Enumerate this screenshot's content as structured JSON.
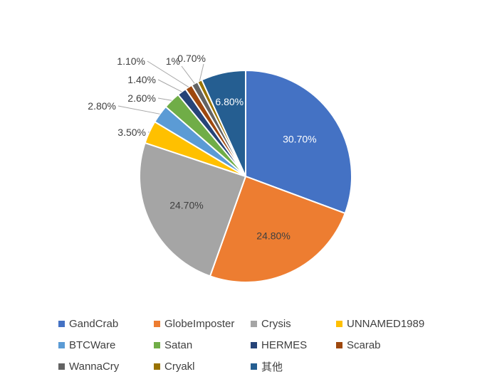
{
  "chart_data": {
    "type": "pie",
    "title": "",
    "slices": [
      {
        "label": "GandCrab",
        "value": 30.7,
        "display": "30.70%",
        "color": "#4472C4"
      },
      {
        "label": "GlobeImposter",
        "value": 24.8,
        "display": "24.80%",
        "color": "#ED7D31"
      },
      {
        "label": "Crysis",
        "value": 24.7,
        "display": "24.70%",
        "color": "#A5A5A5"
      },
      {
        "label": "UNNAMED1989",
        "value": 3.5,
        "display": "3.50%",
        "color": "#FFC000"
      },
      {
        "label": "BTCWare",
        "value": 2.8,
        "display": "2.80%",
        "color": "#5B9BD5"
      },
      {
        "label": "Satan",
        "value": 2.6,
        "display": "2.60%",
        "color": "#70AD47"
      },
      {
        "label": "HERMES",
        "value": 1.4,
        "display": "1.40%",
        "color": "#264478"
      },
      {
        "label": "Scarab",
        "value": 1.1,
        "display": "1.10%",
        "color": "#9E480E"
      },
      {
        "label": "WannaCry",
        "value": 1.0,
        "display": "1%",
        "color": "#636363"
      },
      {
        "label": "Cryakl",
        "value": 0.7,
        "display": "0.70%",
        "color": "#997300"
      },
      {
        "label": "其他",
        "value": 6.8,
        "display": "6.80%",
        "color": "#255E91"
      }
    ],
    "start_angle_deg": 0,
    "direction": "clockwise",
    "legend_position": "bottom"
  }
}
